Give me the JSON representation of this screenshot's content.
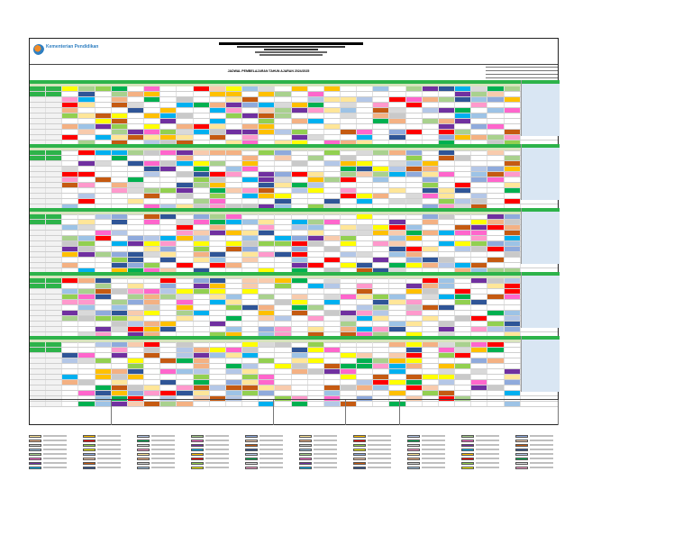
{
  "header": {
    "logo_text": "Kementerian Pendidikan",
    "title": "JADWAL PEMBELAJARAN TAHUN AJARAN 2024/2025"
  },
  "palette": [
    "#ffe699",
    "#f4b183",
    "#c9c9c9",
    "#9dc3e6",
    "#a9d18e",
    "#ff66cc",
    "#7030a0",
    "#00b0f0",
    "#ffc000",
    "#ff0000",
    "#92d050",
    "#ffff00",
    "#8faadc",
    "#f8cbad",
    "#c55a11",
    "#2f5597",
    "#b4c7e7",
    "#00b050",
    "#d9d9d9",
    "#ff99cc"
  ]
}
